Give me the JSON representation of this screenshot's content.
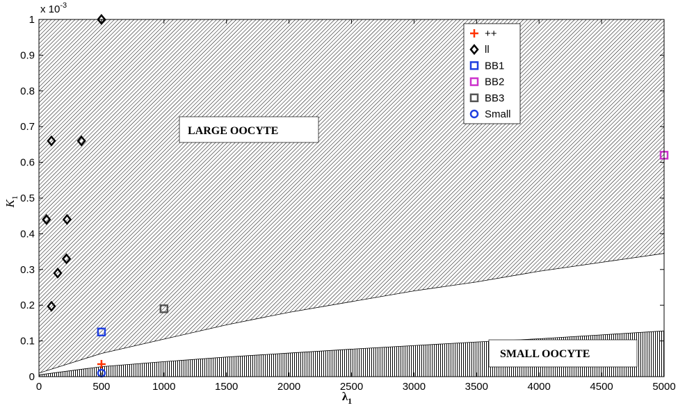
{
  "chart_data": {
    "type": "scatter",
    "xlabel": "λ",
    "xlabel_sub": "1",
    "ylabel": "K",
    "ylabel_sub": "1",
    "y_multiplier": "x 10",
    "y_multiplier_exp": "-3",
    "xlim": [
      0,
      5000
    ],
    "ylim": [
      0,
      1
    ],
    "xticks": [
      0,
      500,
      1000,
      1500,
      2000,
      2500,
      3000,
      3500,
      4000,
      4500,
      5000
    ],
    "yticks": [
      0,
      0.1,
      0.2,
      0.3,
      0.4,
      0.5,
      0.6,
      0.7,
      0.8,
      0.9,
      1
    ],
    "regions": [
      {
        "label": "LARGE OOCYTE",
        "hatch": "diagonal",
        "boundary_x": [
          0,
          500,
          1000,
          1500,
          2000,
          2500,
          3000,
          3500,
          4000,
          4500,
          5000
        ],
        "boundary_y": [
          0.01,
          0.065,
          0.105,
          0.145,
          0.18,
          0.21,
          0.24,
          0.265,
          0.295,
          0.32,
          0.345
        ]
      },
      {
        "label": "SMALL OOCYTE",
        "hatch": "vertical",
        "boundary_x": [
          0,
          500,
          1000,
          1500,
          2000,
          2500,
          3000,
          3500,
          4000,
          4500,
          5000
        ],
        "boundary_y": [
          0.005,
          0.028,
          0.042,
          0.055,
          0.066,
          0.077,
          0.087,
          0.097,
          0.106,
          0.117,
          0.128
        ]
      }
    ],
    "series": [
      {
        "name": "++",
        "marker": "plus",
        "color": "#ff3300",
        "points": [
          [
            500,
            0.035
          ]
        ]
      },
      {
        "name": "ll",
        "marker": "diamond",
        "color": "#000000",
        "points": [
          [
            500,
            1.0
          ],
          [
            100,
            0.66
          ],
          [
            340,
            0.66
          ],
          [
            60,
            0.44
          ],
          [
            225,
            0.44
          ],
          [
            220,
            0.33
          ],
          [
            150,
            0.29
          ],
          [
            100,
            0.197
          ]
        ]
      },
      {
        "name": "BB1",
        "marker": "square",
        "color": "#1f3fe0",
        "points": [
          [
            500,
            0.125
          ]
        ]
      },
      {
        "name": "BB2",
        "marker": "square",
        "color": "#cc33cc",
        "points": [
          [
            5000,
            0.62
          ]
        ]
      },
      {
        "name": "BB3",
        "marker": "square",
        "color": "#555555",
        "points": [
          [
            1000,
            0.19
          ]
        ]
      },
      {
        "name": "Small",
        "marker": "circle",
        "color": "#1f3fe0",
        "points": [
          [
            500,
            0.01
          ]
        ]
      }
    ],
    "legend_position": "top-right",
    "grid": false
  }
}
